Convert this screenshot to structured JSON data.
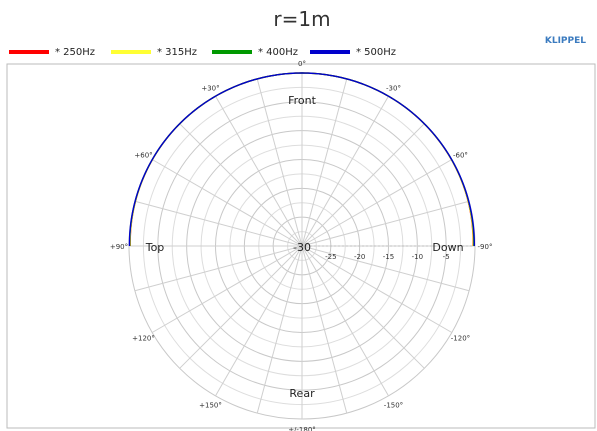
{
  "chart_data": {
    "type": "polar",
    "title": "r=1m",
    "brand": "KLIPPEL",
    "legend_position": "top-left",
    "series": [
      {
        "name": "* 250Hz",
        "color": "#ff0000",
        "r_edge": -0.35
      },
      {
        "name": "* 315Hz",
        "color": "#ffff33",
        "r_edge": -0.3
      },
      {
        "name": "* 400Hz",
        "color": "#009900",
        "r_edge": -0.2
      },
      {
        "name": "* 500Hz",
        "color": "#0000cc",
        "r_edge": -0.12
      }
    ],
    "series_shape": {
      "description": "levels near 0 dB over the front half (-90° to +90°), curve drawn only on front hemisphere",
      "theta_min_deg": -90,
      "theta_max_deg": 90
    },
    "radial_axis": {
      "min": -30,
      "max": 0,
      "ticks": [
        -30,
        -25,
        -20,
        -15,
        -10,
        -5
      ],
      "tick_labels": [
        "-30",
        "-25",
        "-20",
        "-15",
        "-10",
        "-5"
      ]
    },
    "angle_labels": [
      {
        "deg": 0,
        "label": "0°"
      },
      {
        "deg": -30,
        "label": "-30°"
      },
      {
        "deg": -60,
        "label": "-60°"
      },
      {
        "deg": -90,
        "label": "-90°"
      },
      {
        "deg": -120,
        "label": "-120°"
      },
      {
        "deg": -150,
        "label": "-150°"
      },
      {
        "deg": 180,
        "label": "+/-180°"
      },
      {
        "deg": 150,
        "label": "+150°"
      },
      {
        "deg": 120,
        "label": "+120°"
      },
      {
        "deg": 90,
        "label": "+90°"
      },
      {
        "deg": 60,
        "label": "+60°"
      },
      {
        "deg": 30,
        "label": "+30°"
      }
    ],
    "direction_labels": {
      "front": "Front",
      "rear": "Rear",
      "left": "Top",
      "right": "Down"
    },
    "grid": true,
    "spoke_step_deg": 15
  }
}
